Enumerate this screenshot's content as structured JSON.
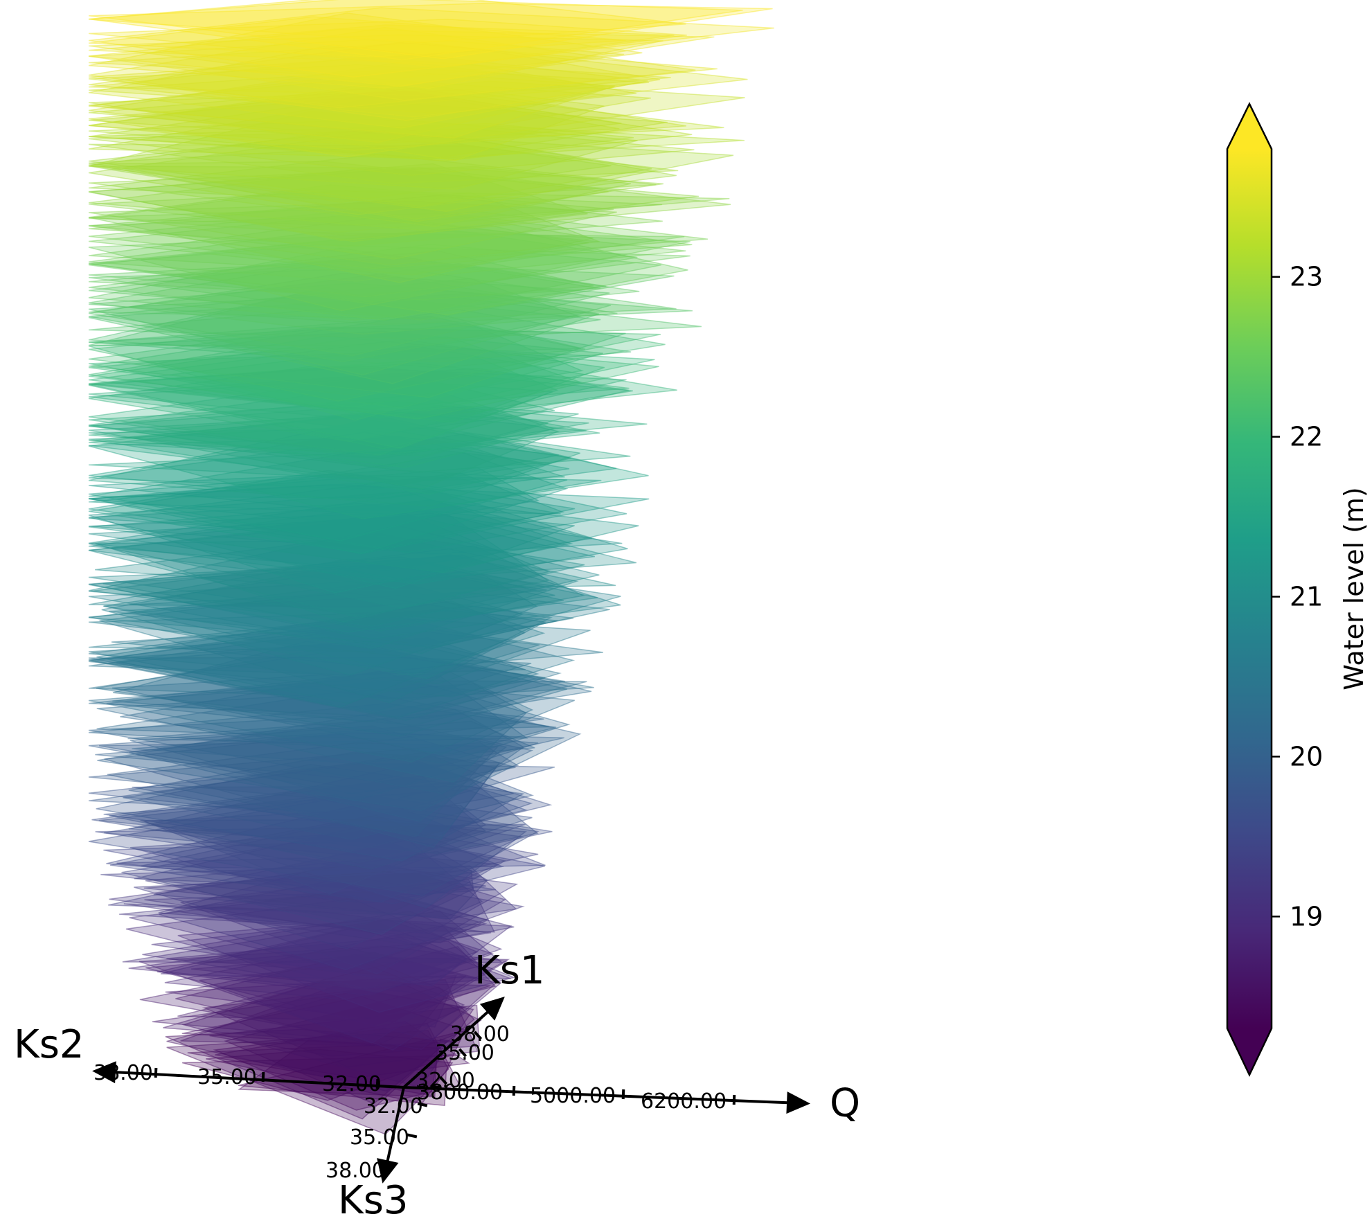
{
  "chart_data": {
    "type": "radar",
    "axes": [
      {
        "name": "Ks1",
        "ticks": [
          "32.00",
          "35.00",
          "38.00"
        ]
      },
      {
        "name": "Ks2",
        "ticks": [
          "32.00",
          "35.00",
          "38.00"
        ]
      },
      {
        "name": "Ks3",
        "ticks": [
          "32.00",
          "35.00",
          "38.00"
        ]
      },
      {
        "name": "Q",
        "ticks": [
          "3800.00",
          "5000.00",
          "6200.00"
        ]
      }
    ],
    "ranges": {
      "Ks1": [
        30,
        39
      ],
      "Ks2": [
        30,
        39
      ],
      "Ks3": [
        30,
        39
      ],
      "Q": [
        3000,
        7000
      ]
    },
    "samples": 260,
    "water_level_range": [
      18.3,
      23.8
    ],
    "colorbar": {
      "label": "Water level (m)",
      "ticks": [
        19,
        20,
        21,
        22,
        23
      ],
      "range": [
        18.3,
        23.8
      ],
      "extend": "both",
      "colormap": "viridis"
    },
    "colors": {
      "viridis": [
        "#440154",
        "#482878",
        "#3e4989",
        "#31688e",
        "#26828e",
        "#1f9e89",
        "#35b779",
        "#6ece58",
        "#b5de2b",
        "#fde725"
      ],
      "axis": "#000000"
    }
  }
}
